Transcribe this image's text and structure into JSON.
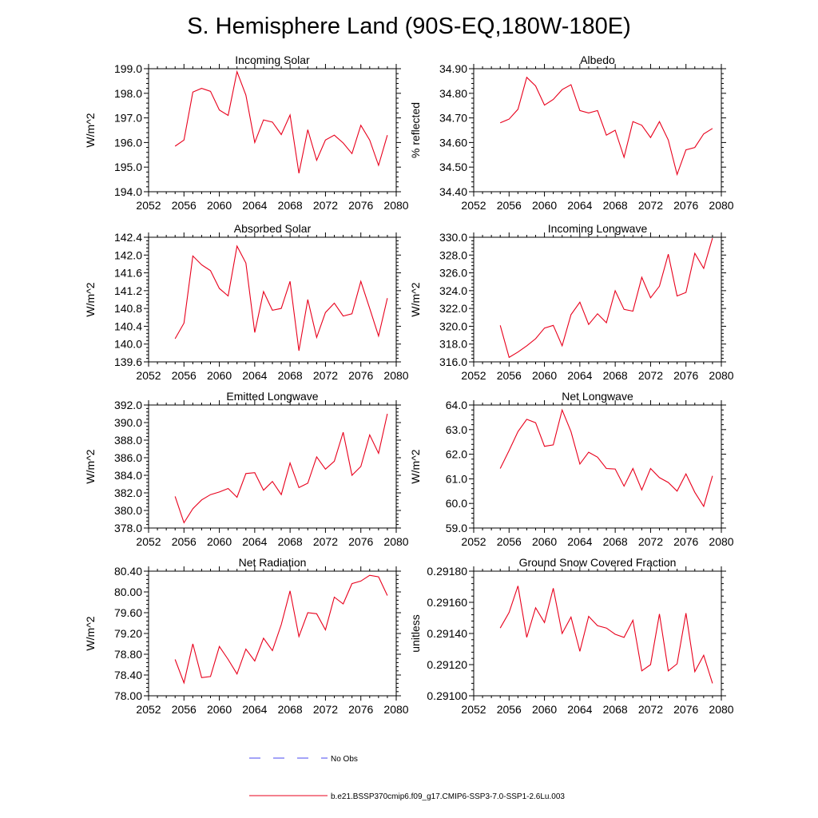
{
  "figure": {
    "title": "S. Hemisphere Land (90S-EQ,180W-180E)"
  },
  "legend": {
    "items": [
      {
        "label": "No Obs",
        "color": "#4a4af0",
        "dash": "dashed"
      },
      {
        "label": "b.e21.BSSP370cmip6.f09_g17.CMIP6-SSP3-7.0-SSP1-2.6Lu.003",
        "color": "#e8001c",
        "dash": "solid"
      }
    ]
  },
  "chart_data": [
    {
      "type": "line",
      "title": "Incoming Solar",
      "ylabel": "W/m^2",
      "xlim": [
        2052,
        2080
      ],
      "ylim": [
        194.0,
        199.0
      ],
      "xticks": [
        "2052",
        "2056",
        "2060",
        "2064",
        "2068",
        "2072",
        "2076",
        "2080"
      ],
      "yticks": [
        "194.0",
        "195.0",
        "196.0",
        "197.0",
        "198.0",
        "199.0"
      ],
      "x": [
        2055,
        2056,
        2057,
        2058,
        2059,
        2060,
        2061,
        2062,
        2063,
        2064,
        2065,
        2066,
        2067,
        2068,
        2069,
        2070,
        2071,
        2072,
        2073,
        2074,
        2075,
        2076,
        2077,
        2078,
        2079
      ],
      "series": [
        {
          "color": "#e8001c",
          "values": [
            195.85,
            196.1,
            198.05,
            198.2,
            198.08,
            197.32,
            197.1,
            198.88,
            197.93,
            196.0,
            196.92,
            196.83,
            196.32,
            197.12,
            194.75,
            196.52,
            195.28,
            196.1,
            196.3,
            195.98,
            195.55,
            196.7,
            196.1,
            195.07,
            196.3
          ]
        }
      ]
    },
    {
      "type": "line",
      "title": "Albedo",
      "ylabel": "% reflected",
      "xlim": [
        2052,
        2080
      ],
      "ylim": [
        34.4,
        34.9
      ],
      "xticks": [
        "2052",
        "2056",
        "2060",
        "2064",
        "2068",
        "2072",
        "2076",
        "2080"
      ],
      "yticks": [
        "34.40",
        "34.50",
        "34.60",
        "34.70",
        "34.80",
        "34.90"
      ],
      "x": [
        2055,
        2056,
        2057,
        2058,
        2059,
        2060,
        2061,
        2062,
        2063,
        2064,
        2065,
        2066,
        2067,
        2068,
        2069,
        2070,
        2071,
        2072,
        2073,
        2074,
        2075,
        2076,
        2077,
        2078,
        2079
      ],
      "series": [
        {
          "color": "#e8001c",
          "values": [
            34.68,
            34.695,
            34.735,
            34.865,
            34.83,
            34.752,
            34.775,
            34.815,
            34.835,
            34.73,
            34.72,
            34.73,
            34.63,
            34.65,
            34.54,
            34.685,
            34.67,
            34.62,
            34.685,
            34.61,
            34.47,
            34.57,
            34.58,
            34.635,
            34.657
          ]
        }
      ]
    },
    {
      "type": "line",
      "title": "Absorbed Solar",
      "ylabel": "W/m^2",
      "xlim": [
        2052,
        2080
      ],
      "ylim": [
        139.6,
        142.4
      ],
      "xticks": [
        "2052",
        "2056",
        "2060",
        "2064",
        "2068",
        "2072",
        "2076",
        "2080"
      ],
      "yticks": [
        "139.6",
        "140.0",
        "140.4",
        "140.8",
        "141.2",
        "141.6",
        "142.0",
        "142.4"
      ],
      "x": [
        2055,
        2056,
        2057,
        2058,
        2059,
        2060,
        2061,
        2062,
        2063,
        2064,
        2065,
        2066,
        2067,
        2068,
        2069,
        2070,
        2071,
        2072,
        2073,
        2074,
        2075,
        2076,
        2077,
        2078,
        2079
      ],
      "series": [
        {
          "color": "#e8001c",
          "values": [
            140.12,
            140.47,
            141.98,
            141.78,
            141.65,
            141.25,
            141.08,
            142.2,
            141.82,
            140.26,
            141.18,
            140.76,
            140.8,
            141.41,
            139.85,
            141.0,
            140.15,
            140.71,
            140.92,
            140.63,
            140.68,
            141.41,
            140.8,
            140.18,
            141.03
          ]
        }
      ]
    },
    {
      "type": "line",
      "title": "Incoming Longwave",
      "ylabel": "W/m^2",
      "xlim": [
        2052,
        2080
      ],
      "ylim": [
        316.0,
        330.0
      ],
      "xticks": [
        "2052",
        "2056",
        "2060",
        "2064",
        "2068",
        "2072",
        "2076",
        "2080"
      ],
      "yticks": [
        "316.0",
        "318.0",
        "320.0",
        "322.0",
        "324.0",
        "326.0",
        "328.0",
        "330.0"
      ],
      "x": [
        2055,
        2056,
        2057,
        2058,
        2059,
        2060,
        2061,
        2062,
        2063,
        2064,
        2065,
        2066,
        2067,
        2068,
        2069,
        2070,
        2071,
        2072,
        2073,
        2074,
        2075,
        2076,
        2077,
        2078,
        2079
      ],
      "series": [
        {
          "color": "#e8001c",
          "values": [
            320.1,
            316.5,
            317.1,
            317.8,
            318.6,
            319.8,
            320.1,
            317.8,
            321.3,
            322.7,
            320.2,
            321.4,
            320.4,
            324.0,
            321.9,
            321.7,
            325.5,
            323.2,
            324.5,
            328.1,
            323.4,
            323.8,
            328.2,
            326.5,
            329.9
          ]
        }
      ]
    },
    {
      "type": "line",
      "title": "Emitted Longwave",
      "ylabel": "W/m^2",
      "xlim": [
        2052,
        2080
      ],
      "ylim": [
        378.0,
        392.0
      ],
      "xticks": [
        "2052",
        "2056",
        "2060",
        "2064",
        "2068",
        "2072",
        "2076",
        "2080"
      ],
      "yticks": [
        "378.0",
        "380.0",
        "382.0",
        "384.0",
        "386.0",
        "388.0",
        "390.0",
        "392.0"
      ],
      "x": [
        2055,
        2056,
        2057,
        2058,
        2059,
        2060,
        2061,
        2062,
        2063,
        2064,
        2065,
        2066,
        2067,
        2068,
        2069,
        2070,
        2071,
        2072,
        2073,
        2074,
        2075,
        2076,
        2077,
        2078,
        2079
      ],
      "series": [
        {
          "color": "#e8001c",
          "values": [
            381.6,
            378.6,
            380.2,
            381.2,
            381.8,
            382.1,
            382.5,
            381.5,
            384.2,
            384.3,
            382.3,
            383.3,
            381.8,
            385.4,
            382.6,
            383.1,
            386.1,
            384.7,
            385.6,
            388.9,
            384.0,
            385.0,
            388.6,
            386.5,
            391.0
          ]
        }
      ]
    },
    {
      "type": "line",
      "title": "Net Longwave",
      "ylabel": "W/m^2",
      "xlim": [
        2052,
        2080
      ],
      "ylim": [
        59.0,
        64.0
      ],
      "xticks": [
        "2052",
        "2056",
        "2060",
        "2064",
        "2068",
        "2072",
        "2076",
        "2080"
      ],
      "yticks": [
        "59.0",
        "60.0",
        "61.0",
        "62.0",
        "63.0",
        "64.0"
      ],
      "x": [
        2055,
        2056,
        2057,
        2058,
        2059,
        2060,
        2061,
        2062,
        2063,
        2064,
        2065,
        2066,
        2067,
        2068,
        2069,
        2070,
        2071,
        2072,
        2073,
        2074,
        2075,
        2076,
        2077,
        2078,
        2079
      ],
      "series": [
        {
          "color": "#e8001c",
          "values": [
            61.42,
            62.15,
            62.92,
            63.42,
            63.28,
            62.32,
            62.38,
            63.8,
            62.92,
            61.6,
            62.08,
            61.88,
            61.42,
            61.4,
            60.7,
            61.42,
            60.55,
            61.42,
            61.05,
            60.85,
            60.5,
            61.2,
            60.45,
            59.88,
            61.12
          ]
        }
      ]
    },
    {
      "type": "line",
      "title": "Net Radiation",
      "ylabel": "W/m^2",
      "xlim": [
        2052,
        2080
      ],
      "ylim": [
        78.0,
        80.4
      ],
      "xticks": [
        "2052",
        "2056",
        "2060",
        "2064",
        "2068",
        "2072",
        "2076",
        "2080"
      ],
      "yticks": [
        "78.00",
        "78.40",
        "78.80",
        "79.20",
        "79.60",
        "80.00",
        "80.40"
      ],
      "x": [
        2055,
        2056,
        2057,
        2058,
        2059,
        2060,
        2061,
        2062,
        2063,
        2064,
        2065,
        2066,
        2067,
        2068,
        2069,
        2070,
        2071,
        2072,
        2073,
        2074,
        2075,
        2076,
        2077,
        2078,
        2079
      ],
      "series": [
        {
          "color": "#e8001c",
          "values": [
            78.7,
            78.25,
            79.0,
            78.35,
            78.37,
            78.95,
            78.7,
            78.42,
            78.9,
            78.67,
            79.11,
            78.87,
            79.37,
            80.02,
            79.14,
            79.6,
            79.58,
            79.27,
            79.9,
            79.77,
            80.16,
            80.21,
            80.32,
            80.29,
            79.93
          ]
        }
      ]
    },
    {
      "type": "line",
      "title": "Ground Snow Covered Fraction",
      "ylabel": "unitless",
      "xlim": [
        2052,
        2080
      ],
      "ylim": [
        0.291,
        0.2918
      ],
      "xticks": [
        "2052",
        "2056",
        "2060",
        "2064",
        "2068",
        "2072",
        "2076",
        "2080"
      ],
      "yticks": [
        "0.29100",
        "0.29120",
        "0.29140",
        "0.29160",
        "0.29180"
      ],
      "x": [
        2055,
        2056,
        2057,
        2058,
        2059,
        2060,
        2061,
        2062,
        2063,
        2064,
        2065,
        2066,
        2067,
        2068,
        2069,
        2070,
        2071,
        2072,
        2073,
        2074,
        2075,
        2076,
        2077,
        2078,
        2079
      ],
      "series": [
        {
          "color": "#e8001c",
          "values": [
            0.291435,
            0.291535,
            0.291705,
            0.291375,
            0.291565,
            0.29147,
            0.29169,
            0.2914,
            0.291505,
            0.291285,
            0.29151,
            0.29145,
            0.291435,
            0.291395,
            0.291375,
            0.291485,
            0.29116,
            0.2912,
            0.291525,
            0.29116,
            0.291205,
            0.29153,
            0.291155,
            0.29126,
            0.29108
          ]
        }
      ]
    }
  ]
}
